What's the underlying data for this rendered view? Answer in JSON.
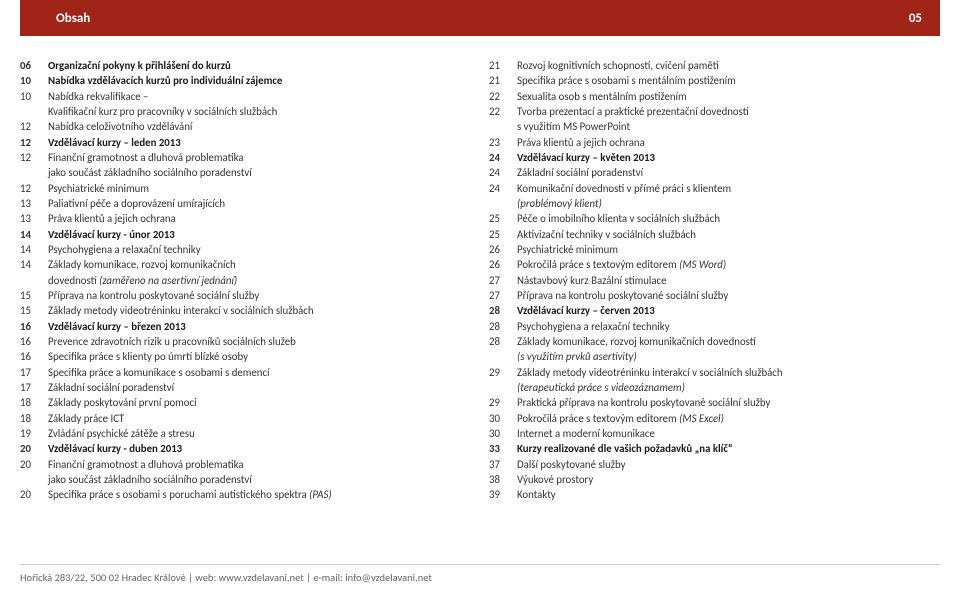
{
  "header": {
    "title": "Obsah",
    "page": "05"
  },
  "columns": {
    "left": [
      {
        "pg": "06",
        "txt": "Organizační pokyny k přihlášení do kurzů",
        "bold": true
      },
      {
        "pg": "10",
        "txt": "Nabídka vzdělávacích kurzů pro individuální zájemce",
        "bold": true
      },
      {
        "pg": "10",
        "txt": "Nabídka rekvalifikace –"
      },
      {
        "pg": "",
        "txt": "Kvalifikační kurz pro pracovníky v sociálních službách",
        "cont": true
      },
      {
        "pg": "12",
        "txt": "Nabídka celoživotního vzdělávání"
      },
      {
        "pg": "12",
        "txt": "Vzdělávací kurzy – leden 2013",
        "bold": true
      },
      {
        "pg": "12",
        "txt": "Finanční gramotnost a dluhová problematika"
      },
      {
        "pg": "",
        "txt": "jako součást základního sociálního poradenství",
        "cont": true
      },
      {
        "pg": "12",
        "txt": "Psychiatrické minimum"
      },
      {
        "pg": "13",
        "txt": "Paliativní péče a doprovázení umírajících"
      },
      {
        "pg": "13",
        "txt": "Práva klientů a jejich ochrana"
      },
      {
        "pg": "14",
        "txt": "Vzdělávací kurzy  - únor 2013",
        "bold": true
      },
      {
        "pg": "14",
        "txt": "Psychohygiena a relaxační techniky"
      },
      {
        "pg": "14",
        "txt": "Základy komunikace, rozvoj komunikačních"
      },
      {
        "pg": "",
        "txt": "dovedností (zaměřeno na asertivní jednání)",
        "cont": true,
        "italic": true,
        "italicPart": "(zaměřeno na asertivní jednání)",
        "prefix": "dovedností "
      },
      {
        "pg": "15",
        "txt": "Příprava na kontrolu poskytované sociální služby"
      },
      {
        "pg": "15",
        "txt": "Základy metody videotréninku interakcí v sociálních službách"
      },
      {
        "pg": "16",
        "txt": "Vzdělávací kurzy – březen 2013",
        "bold": true
      },
      {
        "pg": "16",
        "txt": "Prevence zdravotních rizik u pracovníků sociálních služeb"
      },
      {
        "pg": "16",
        "txt": "Specifika práce s klienty po úmrtí blízké osoby"
      },
      {
        "pg": "17",
        "txt": "Specifika práce a komunikace s osobami s demencí"
      },
      {
        "pg": "17",
        "txt": "Základní sociální poradenství"
      },
      {
        "pg": "18",
        "txt": "Základy poskytování první pomoci"
      },
      {
        "pg": "18",
        "txt": "Základy práce ICT"
      },
      {
        "pg": "19",
        "txt": "Zvládání psychické zátěže a stresu"
      },
      {
        "pg": "20",
        "txt": "Vzdělávací kurzy - duben 2013",
        "bold": true
      },
      {
        "pg": "20",
        "txt": "Finanční gramotnost a dluhová problematika"
      },
      {
        "pg": "",
        "txt": "jako součást základního sociálního poradenství",
        "cont": true
      },
      {
        "pg": "20",
        "txt": "Specifika práce s osobami s poruchami autistického spektra (PAS)",
        "italicPart": "(PAS)",
        "prefix": "Specifika práce s osobami s poruchami autistického spektra "
      }
    ],
    "right": [
      {
        "pg": "21",
        "txt": "Rozvoj kognitivních schopností, cvičení paměti"
      },
      {
        "pg": "21",
        "txt": "Specifika práce s osobami s mentálním postižením"
      },
      {
        "pg": "22",
        "txt": "Sexualita osob s mentálním postižením"
      },
      {
        "pg": "22",
        "txt": "Tvorba prezentací a praktické prezentační dovednosti"
      },
      {
        "pg": "",
        "txt": "s využitím MS PowerPoint",
        "cont": true
      },
      {
        "pg": "23",
        "txt": "Práva klientů a jejich ochrana"
      },
      {
        "pg": "24",
        "txt": "Vzdělávací kurzy – květen 2013",
        "bold": true
      },
      {
        "pg": "24",
        "txt": "Základní sociální poradenství"
      },
      {
        "pg": "24",
        "txt": "Komunikační dovednosti v přímé práci s klientem"
      },
      {
        "pg": "",
        "txt": "(problémový klient)",
        "cont": true,
        "italicAll": true
      },
      {
        "pg": "25",
        "txt": "Péče o imobilního klienta v sociálních službách"
      },
      {
        "pg": "25",
        "txt": "Aktivizační techniky v sociálních službách"
      },
      {
        "pg": "26",
        "txt": "Psychiatrické minimum"
      },
      {
        "pg": "26",
        "txt": "Pokročilá práce s textovým editorem (MS Word)",
        "italicPart": "(MS Word)",
        "prefix": "Pokročilá práce s textovým editorem "
      },
      {
        "pg": "27",
        "txt": "Nástavbový kurz Bazální stimulace"
      },
      {
        "pg": "27",
        "txt": "Příprava na kontrolu poskytované sociální služby"
      },
      {
        "pg": "28",
        "txt": "Vzdělávací kurzy – červen 2013",
        "bold": true
      },
      {
        "pg": "28",
        "txt": "Psychohygiena a relaxační techniky"
      },
      {
        "pg": "28",
        "txt": "Základy komunikace, rozvoj komunikačních dovedností"
      },
      {
        "pg": "",
        "txt": "(s využitím prvků asertivity)",
        "cont": true,
        "italicAll": true
      },
      {
        "pg": "29",
        "txt": "Základy metody videotréninku interakcí v sociálních službách"
      },
      {
        "pg": "",
        "txt": "(terapeutická práce s videozáznamem)",
        "cont": true,
        "italicAll": true
      },
      {
        "pg": "29",
        "txt": "Praktická příprava na kontrolu poskytované sociální služby"
      },
      {
        "pg": "30",
        "txt": "Pokročilá práce s textovým editorem (MS Excel)",
        "italicPart": "(MS Excel)",
        "prefix": "Pokročilá práce s textovým editorem "
      },
      {
        "pg": "30",
        "txt": "Internet a moderní komunikace"
      },
      {
        "pg": "33",
        "txt": "Kurzy realizované dle vašich požadavků „na klíč“",
        "bold": true
      },
      {
        "pg": "37",
        "txt": "Další poskytované služby"
      },
      {
        "pg": "38",
        "txt": "Výukové prostory"
      },
      {
        "pg": "39",
        "txt": "Kontakty"
      }
    ]
  },
  "footer": {
    "address": "Hořická 283/22, 500 02 Hradec Králové",
    "sep1": " | ",
    "web_label": "web: ",
    "web": "www.vzdelavani.net",
    "sep2": " | ",
    "email_label": "e-mail: ",
    "email": "info@vzdelavani.net"
  }
}
